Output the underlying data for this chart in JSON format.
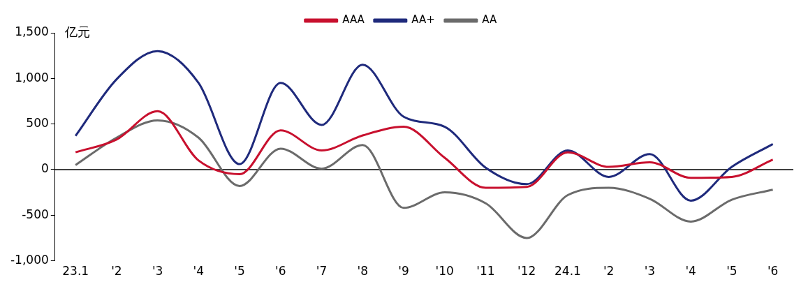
{
  "chart_data": {
    "type": "line",
    "ylabel": "亿元",
    "categories": [
      "23.1",
      "'2",
      "'3",
      "'4",
      "'5",
      "'6",
      "'7",
      "'8",
      "'9",
      "'10",
      "'11",
      "'12",
      "24.1",
      "'2",
      "'3",
      "'4",
      "'5",
      "'6"
    ],
    "series": [
      {
        "name": "AAA",
        "color": "#c8102e",
        "values": [
          190,
          330,
          640,
          100,
          -50,
          430,
          210,
          375,
          470,
          130,
          -200,
          -190,
          190,
          30,
          80,
          -90,
          -80,
          110
        ]
      },
      {
        "name": "AA+",
        "color": "#1f2a7c",
        "values": [
          370,
          990,
          1300,
          950,
          60,
          950,
          490,
          1150,
          580,
          470,
          20,
          -160,
          210,
          -80,
          170,
          -340,
          30,
          280
        ]
      },
      {
        "name": "AA",
        "color": "#6b6b6b",
        "values": [
          50,
          350,
          540,
          350,
          -180,
          230,
          10,
          270,
          -420,
          -250,
          -370,
          -750,
          -280,
          -200,
          -320,
          -570,
          -330,
          -220
        ]
      }
    ],
    "ylim": [
      -1000,
      1500
    ],
    "yticks": [
      {
        "value": -1000,
        "label": "-1,000"
      },
      {
        "value": -500,
        "label": "-500"
      },
      {
        "value": 0,
        "label": "0"
      },
      {
        "value": 500,
        "label": "500"
      },
      {
        "value": 1000,
        "label": "1,000"
      },
      {
        "value": 1500,
        "label": "1,500"
      }
    ],
    "ref_lines": [
      {
        "axis": "y",
        "value": 0,
        "color": "#000000"
      }
    ],
    "legend": "top",
    "grid": false,
    "marker": "none",
    "line_style": "solid"
  }
}
